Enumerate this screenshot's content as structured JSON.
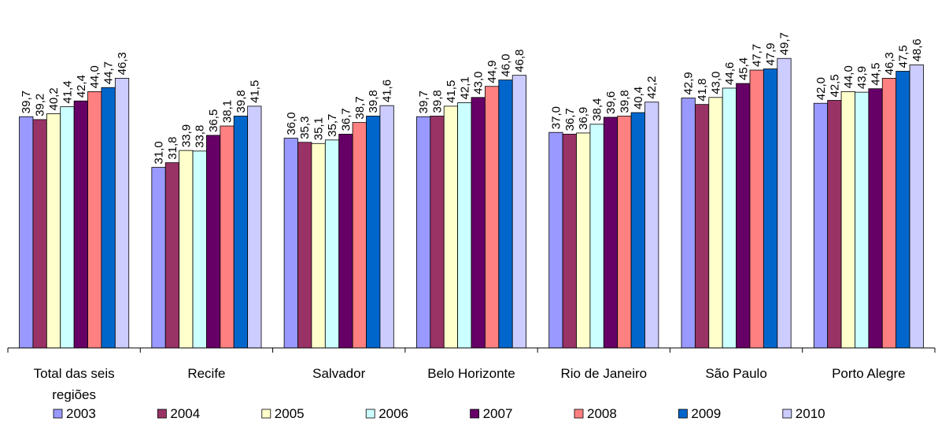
{
  "chart_data": {
    "type": "bar",
    "categories": [
      [
        "Total das seis",
        "regiões"
      ],
      [
        "Recife"
      ],
      [
        "Salvador"
      ],
      [
        "Belo Horizonte"
      ],
      [
        "Rio de Janeiro"
      ],
      [
        "São Paulo"
      ],
      [
        "Porto Alegre"
      ]
    ],
    "series": [
      {
        "name": "2003",
        "color": "#9999FF",
        "values": [
          39.7,
          31.0,
          36.0,
          39.7,
          37.0,
          42.9,
          42.0
        ],
        "labels": [
          "39,7",
          "31,0",
          "36,0",
          "39,7",
          "37,0",
          "42,9",
          "42,0"
        ]
      },
      {
        "name": "2004",
        "color": "#993366",
        "values": [
          39.2,
          31.8,
          35.3,
          39.8,
          36.7,
          41.8,
          42.5
        ],
        "labels": [
          "39,2",
          "31,8",
          "35,3",
          "39,8",
          "36,7",
          "41,8",
          "42,5"
        ]
      },
      {
        "name": "2005",
        "color": "#FFFFCC",
        "values": [
          40.2,
          33.9,
          35.1,
          41.5,
          36.9,
          43.0,
          44.0
        ],
        "labels": [
          "40,2",
          "33,9",
          "35,1",
          "41,5",
          "36,9",
          "43,0",
          "44,0"
        ]
      },
      {
        "name": "2006",
        "color": "#CCFFFF",
        "values": [
          41.4,
          33.8,
          35.7,
          42.1,
          38.4,
          44.6,
          43.9
        ],
        "labels": [
          "41,4",
          "33,8",
          "35,7",
          "42,1",
          "38,4",
          "44,6",
          "43,9"
        ]
      },
      {
        "name": "2007",
        "color": "#660066",
        "values": [
          42.4,
          36.5,
          36.7,
          43.0,
          39.6,
          45.4,
          44.5
        ],
        "labels": [
          "42,4",
          "36,5",
          "36,7",
          "43,0",
          "39,6",
          "45,4",
          "44,5"
        ]
      },
      {
        "name": "2008",
        "color": "#FF8080",
        "values": [
          44.0,
          38.1,
          38.7,
          44.9,
          39.8,
          47.7,
          46.3
        ],
        "labels": [
          "44,0",
          "38,1",
          "38,7",
          "44,9",
          "39,8",
          "47,7",
          "46,3"
        ]
      },
      {
        "name": "2009",
        "color": "#0066CC",
        "values": [
          44.7,
          39.8,
          39.8,
          46.0,
          40.4,
          47.9,
          47.5
        ],
        "labels": [
          "44,7",
          "39,8",
          "39,8",
          "46,0",
          "40,4",
          "47,9",
          "47,5"
        ]
      },
      {
        "name": "2010",
        "color": "#CCCCFF",
        "values": [
          46.3,
          41.5,
          41.6,
          46.8,
          42.2,
          49.7,
          48.6
        ],
        "labels": [
          "46,3",
          "41,5",
          "41,6",
          "46,8",
          "42,2",
          "49,7",
          "48,6"
        ]
      }
    ],
    "ylim": [
      0,
      55
    ],
    "grid": false,
    "legend_position": "bottom",
    "title": "",
    "xlabel": "",
    "ylabel": ""
  }
}
